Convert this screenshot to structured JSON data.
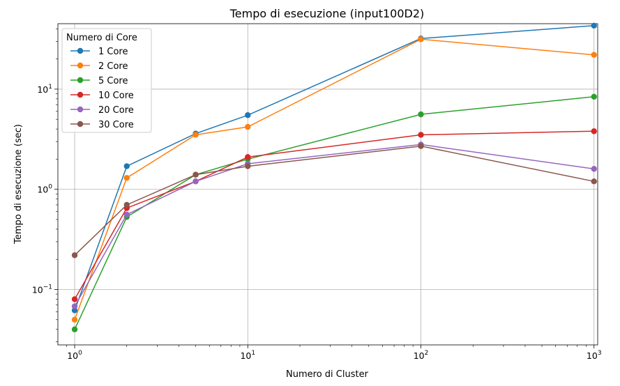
{
  "chart_data": {
    "type": "line",
    "title": "Tempo di esecuzione (input100D2)",
    "xlabel": "Numero di Cluster",
    "ylabel": "Tempo di esecuzione (sec)",
    "xscale": "log",
    "yscale": "log",
    "xlim": [
      0.8,
      1050
    ],
    "ylim": [
      0.028,
      45
    ],
    "grid": true,
    "legend": {
      "title": "Numero di Core",
      "placement": "top-left"
    },
    "x_ticks": [
      {
        "value": 1,
        "base": "10",
        "exp": "0"
      },
      {
        "value": 10,
        "base": "10",
        "exp": "1"
      },
      {
        "value": 100,
        "base": "10",
        "exp": "2"
      },
      {
        "value": 1000,
        "base": "10",
        "exp": "3"
      }
    ],
    "y_ticks": [
      {
        "value": 0.1,
        "base": "10",
        "exp": "−1"
      },
      {
        "value": 1,
        "base": "10",
        "exp": "0"
      },
      {
        "value": 10,
        "base": "10",
        "exp": "1"
      }
    ],
    "x": [
      1,
      2,
      5,
      10,
      100,
      1000
    ],
    "series": [
      {
        "name": "1 Core",
        "color": "#1f77b4",
        "values": [
          0.062,
          1.7,
          3.6,
          5.5,
          32,
          43
        ]
      },
      {
        "name": "2 Core",
        "color": "#ff7f0e",
        "values": [
          0.05,
          1.3,
          3.5,
          4.2,
          31.5,
          22
        ]
      },
      {
        "name": "5 Core",
        "color": "#2ca02c",
        "values": [
          0.04,
          0.53,
          1.4,
          2.0,
          5.6,
          8.4
        ]
      },
      {
        "name": "10 Core",
        "color": "#d62728",
        "values": [
          0.08,
          0.65,
          1.2,
          2.1,
          3.5,
          3.8
        ]
      },
      {
        "name": "20 Core",
        "color": "#9467bd",
        "values": [
          0.068,
          0.56,
          1.2,
          1.8,
          2.8,
          1.6
        ]
      },
      {
        "name": "30 Core",
        "color": "#8c564b",
        "values": [
          0.22,
          0.7,
          1.4,
          1.7,
          2.7,
          1.2
        ]
      }
    ]
  }
}
